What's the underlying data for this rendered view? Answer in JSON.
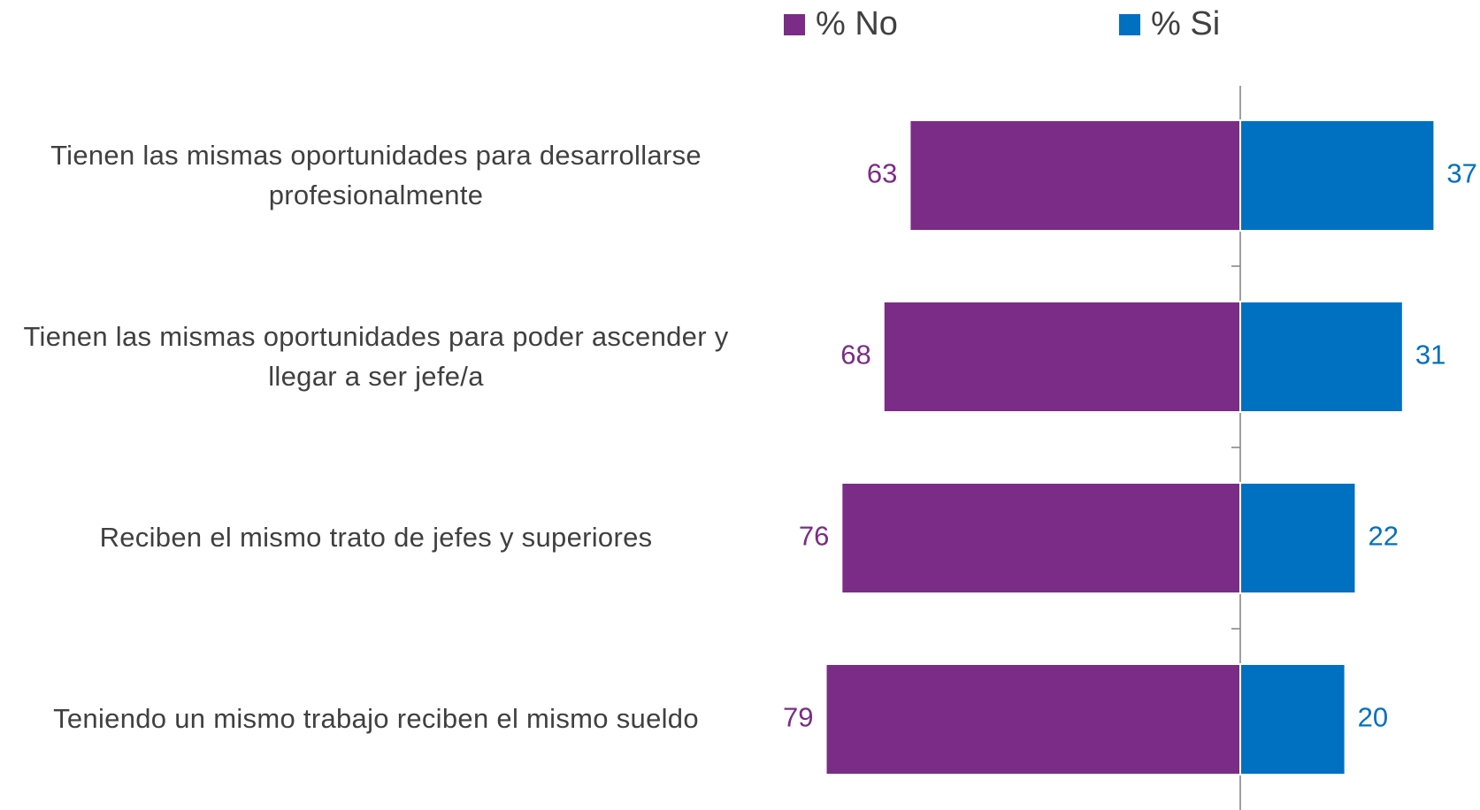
{
  "chart_data": {
    "type": "diverging-bar",
    "categories": [
      "Tienen las mismas oportunidades para desarrollarse profesionalmente",
      "Tienen las mismas oportunidades para poder ascender y llegar a ser jefe/a",
      "Reciben el mismo trato de jefes y superiores",
      "Teniendo un mismo trabajo reciben el mismo sueldo"
    ],
    "series": [
      {
        "name": "% No",
        "color": "#7b2c86",
        "values": [
          63,
          68,
          76,
          79
        ]
      },
      {
        "name": "% Si",
        "color": "#0070c0",
        "values": [
          37,
          31,
          22,
          20
        ]
      }
    ],
    "legend": "top"
  }
}
